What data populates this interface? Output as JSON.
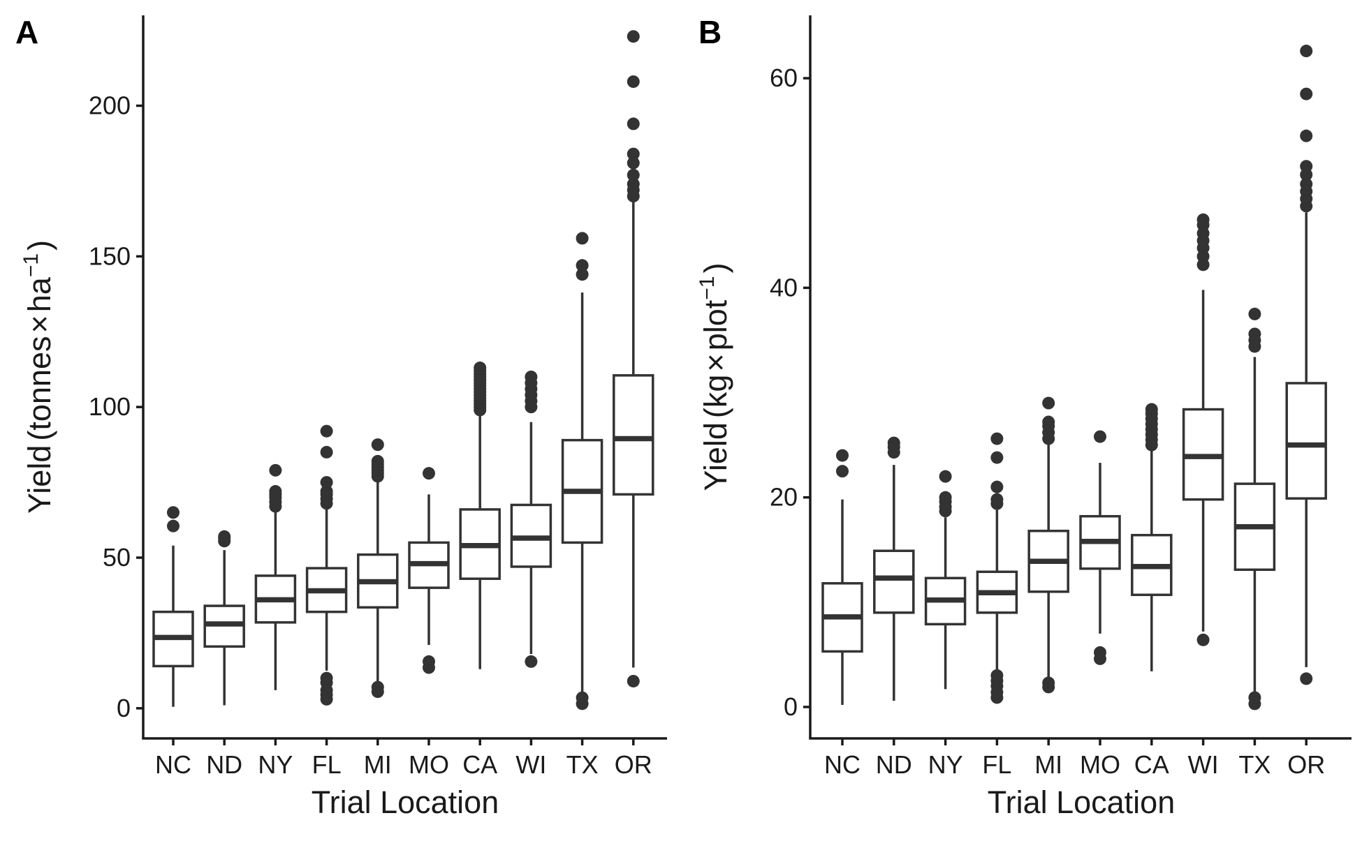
{
  "chart_data": [
    {
      "type": "boxplot",
      "panel_label": "A",
      "xlabel": "Trial Location",
      "ylabel": {
        "base": "Yield",
        "unit": "tonnes",
        "times": "×",
        "per": "ha",
        "exp": "−1"
      },
      "ylim": [
        -10,
        230
      ],
      "yticks": [
        0,
        50,
        100,
        150,
        200
      ],
      "categories": [
        "NC",
        "ND",
        "NY",
        "FL",
        "MI",
        "MO",
        "CA",
        "WI",
        "TX",
        "OR"
      ],
      "boxes": [
        {
          "category": "NC",
          "min": 0.5,
          "q1": 14,
          "median": 23.5,
          "q3": 32,
          "max": 54,
          "outliers": [
            60.5,
            65
          ]
        },
        {
          "category": "ND",
          "min": 1,
          "q1": 20.5,
          "median": 28,
          "q3": 34,
          "max": 52.5,
          "outliers": [
            55.5,
            56.5,
            57
          ]
        },
        {
          "category": "NY",
          "min": 6,
          "q1": 28.5,
          "median": 36,
          "q3": 44,
          "max": 66,
          "outliers": [
            67,
            68.5,
            70,
            71,
            72,
            79
          ]
        },
        {
          "category": "FL",
          "min": 12.5,
          "q1": 32,
          "median": 39,
          "q3": 46.5,
          "max": 67,
          "outliers": [
            3,
            4.5,
            6,
            8.5,
            10,
            68,
            69.5,
            71,
            72,
            75,
            85,
            92
          ]
        },
        {
          "category": "MI",
          "min": 8,
          "q1": 33.5,
          "median": 42,
          "q3": 51,
          "max": 76,
          "outliers": [
            5.5,
            7,
            77,
            78,
            79,
            80,
            81,
            82,
            87.5
          ]
        },
        {
          "category": "MO",
          "min": 21,
          "q1": 40,
          "median": 48,
          "q3": 55,
          "max": 71,
          "outliers": [
            13.5,
            15.5,
            78
          ]
        },
        {
          "category": "CA",
          "min": 13,
          "q1": 43,
          "median": 54,
          "q3": 66,
          "max": 98,
          "outliers": [
            99,
            100,
            101,
            102,
            103,
            104,
            105,
            106,
            107,
            108,
            109,
            110,
            111,
            112,
            113
          ]
        },
        {
          "category": "WI",
          "min": 18,
          "q1": 47,
          "median": 56.5,
          "q3": 67.5,
          "max": 95,
          "outliers": [
            15.5,
            100,
            102,
            104,
            106,
            108,
            110
          ]
        },
        {
          "category": "TX",
          "min": 5,
          "q1": 55,
          "median": 72,
          "q3": 89,
          "max": 138,
          "outliers": [
            1.5,
            3.5,
            144,
            147,
            156
          ]
        },
        {
          "category": "OR",
          "min": 13.5,
          "q1": 71,
          "median": 89.5,
          "q3": 110.5,
          "max": 168,
          "outliers": [
            9,
            170,
            172,
            174,
            177,
            181,
            184,
            194,
            208,
            223
          ]
        }
      ]
    },
    {
      "type": "boxplot",
      "panel_label": "B",
      "xlabel": "Trial Location",
      "ylabel": {
        "base": "Yield",
        "unit": "kg",
        "times": "×",
        "per": "plot",
        "exp": "−1"
      },
      "ylim": [
        -3,
        66
      ],
      "yticks": [
        0,
        20,
        40,
        60
      ],
      "categories": [
        "NC",
        "ND",
        "NY",
        "FL",
        "MI",
        "MO",
        "CA",
        "WI",
        "TX",
        "OR"
      ],
      "boxes": [
        {
          "category": "NC",
          "min": 0.2,
          "q1": 5.3,
          "median": 8.6,
          "q3": 11.8,
          "max": 19.8,
          "outliers": [
            22.5,
            24
          ]
        },
        {
          "category": "ND",
          "min": 0.6,
          "q1": 9,
          "median": 12.3,
          "q3": 14.9,
          "max": 23.1,
          "outliers": [
            24.3,
            24.8,
            25.2
          ]
        },
        {
          "category": "NY",
          "min": 1.7,
          "q1": 7.9,
          "median": 10.2,
          "q3": 12.3,
          "max": 18.1,
          "outliers": [
            18.7,
            19.1,
            19.6,
            20,
            22
          ]
        },
        {
          "category": "FL",
          "min": 3.5,
          "q1": 9,
          "median": 10.9,
          "q3": 12.9,
          "max": 18.8,
          "outliers": [
            0.9,
            1.4,
            2,
            2.5,
            3,
            19.4,
            19.8,
            21,
            23.8,
            25.6
          ]
        },
        {
          "category": "MI",
          "min": 2.6,
          "q1": 11,
          "median": 13.9,
          "q3": 16.8,
          "max": 25.1,
          "outliers": [
            1.9,
            2.3,
            25.6,
            26.2,
            26.8,
            27.2,
            29
          ]
        },
        {
          "category": "MO",
          "min": 7,
          "q1": 13.2,
          "median": 15.8,
          "q3": 18.2,
          "max": 23.3,
          "outliers": [
            4.6,
            5.2,
            25.8
          ]
        },
        {
          "category": "CA",
          "min": 3.4,
          "q1": 10.7,
          "median": 13.4,
          "q3": 16.4,
          "max": 24.6,
          "outliers": [
            25,
            25.5,
            26,
            26.5,
            27,
            27.5,
            28,
            28.4
          ]
        },
        {
          "category": "WI",
          "min": 7.2,
          "q1": 19.8,
          "median": 23.9,
          "q3": 28.4,
          "max": 39.8,
          "outliers": [
            6.4,
            42.2,
            43,
            43.8,
            44.5,
            45.2,
            46,
            46.5
          ]
        },
        {
          "category": "TX",
          "min": 1.3,
          "q1": 13.1,
          "median": 17.2,
          "q3": 21.3,
          "max": 33.4,
          "outliers": [
            0.3,
            0.9,
            34.4,
            35,
            35.6,
            37.5
          ]
        },
        {
          "category": "OR",
          "min": 3.8,
          "q1": 19.9,
          "median": 25,
          "q3": 30.9,
          "max": 47.2,
          "outliers": [
            2.7,
            47.8,
            48.5,
            49.2,
            49.9,
            50.8,
            51.6,
            54.5,
            58.5,
            62.6
          ]
        }
      ]
    }
  ]
}
